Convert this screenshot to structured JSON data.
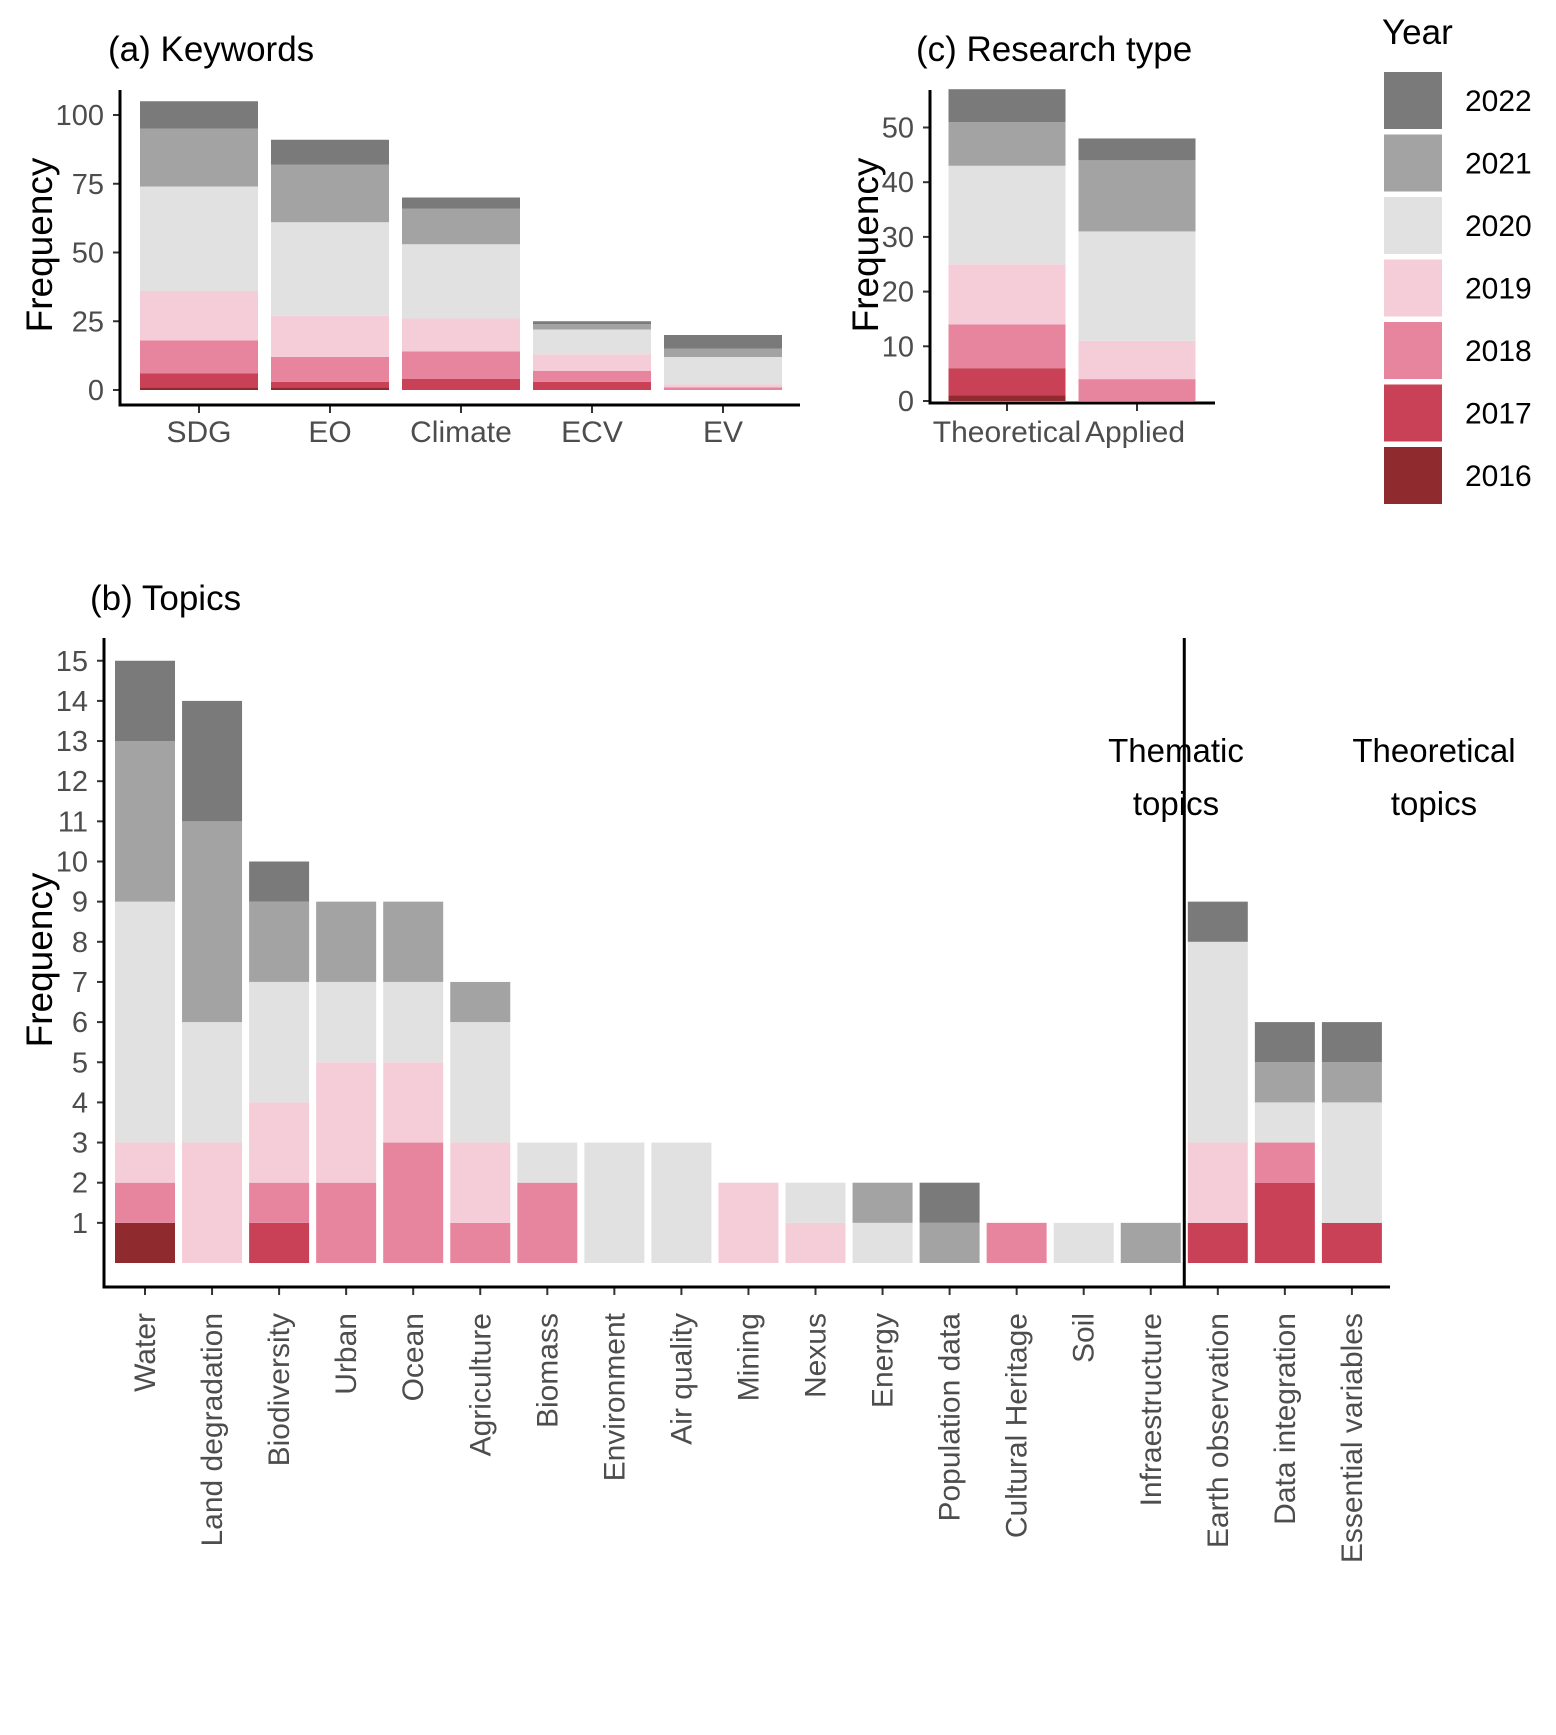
{
  "legend": {
    "title": "Year",
    "entries": [
      {
        "label": "2022",
        "color": "#7a7a7a"
      },
      {
        "label": "2021",
        "color": "#a3a3a3"
      },
      {
        "label": "2020",
        "color": "#e1e1e1"
      },
      {
        "label": "2019",
        "color": "#f5cdd9"
      },
      {
        "label": "2018",
        "color": "#e6859d"
      },
      {
        "label": "2017",
        "color": "#c94157"
      },
      {
        "label": "2016",
        "color": "#8f2a2f"
      }
    ]
  },
  "chart_data": [
    {
      "id": "keywords",
      "type": "bar",
      "stacked": true,
      "title": "(a) Keywords",
      "xlabel": "",
      "ylabel": "Frequency",
      "ylim": [
        0,
        108
      ],
      "yticks": [
        0,
        25,
        50,
        75,
        100
      ],
      "categories": [
        "SDG",
        "EO",
        "Climate",
        "ECV",
        "EV"
      ],
      "series": [
        {
          "name": "2016",
          "values": [
            1,
            1,
            0,
            0,
            0
          ]
        },
        {
          "name": "2017",
          "values": [
            5,
            2,
            4,
            3,
            0
          ]
        },
        {
          "name": "2018",
          "values": [
            12,
            9,
            10,
            4,
            1
          ]
        },
        {
          "name": "2019",
          "values": [
            18,
            15,
            12,
            6,
            1
          ]
        },
        {
          "name": "2020",
          "values": [
            38,
            34,
            27,
            9,
            10
          ]
        },
        {
          "name": "2021",
          "values": [
            21,
            21,
            13,
            2,
            3
          ]
        },
        {
          "name": "2022",
          "values": [
            10,
            9,
            4,
            1,
            5
          ]
        }
      ]
    },
    {
      "id": "research_type",
      "type": "bar",
      "stacked": true,
      "title": "(c) Research type",
      "xlabel": "",
      "ylabel": "Frequency",
      "ylim": [
        0,
        57
      ],
      "yticks": [
        0,
        10,
        20,
        30,
        40,
        50
      ],
      "categories": [
        "Theoretical",
        "Applied"
      ],
      "series": [
        {
          "name": "2016",
          "values": [
            1,
            0
          ]
        },
        {
          "name": "2017",
          "values": [
            5,
            0
          ]
        },
        {
          "name": "2018",
          "values": [
            8,
            4
          ]
        },
        {
          "name": "2019",
          "values": [
            11,
            7
          ]
        },
        {
          "name": "2020",
          "values": [
            18,
            20
          ]
        },
        {
          "name": "2021",
          "values": [
            8,
            13
          ]
        },
        {
          "name": "2022",
          "values": [
            6,
            4
          ]
        }
      ]
    },
    {
      "id": "topics",
      "type": "bar",
      "stacked": true,
      "title": "(b) Topics",
      "xlabel": "",
      "ylabel": "Frequency",
      "ylim": [
        0,
        15.5
      ],
      "yticks": [
        1,
        2,
        3,
        4,
        5,
        6,
        7,
        8,
        9,
        10,
        11,
        12,
        13,
        14,
        15
      ],
      "categories": [
        "Water",
        "Land degradation",
        "Biodiversity",
        "Urban",
        "Ocean",
        "Agriculture",
        "Biomass",
        "Environment",
        "Air quality",
        "Mining",
        "Nexus",
        "Energy",
        "Population data",
        "Cultural Heritage",
        "Soil",
        "Infraestructure",
        "Earth observation",
        "Data integration",
        "Essential variables"
      ],
      "separator_after_index": 15,
      "group_labels": [
        {
          "line1": "Thematic",
          "line2": "topics"
        },
        {
          "line1": "Theoretical",
          "line2": "topics"
        }
      ],
      "series": [
        {
          "name": "2016",
          "values": [
            1,
            0,
            0,
            0,
            0,
            0,
            0,
            0,
            0,
            0,
            0,
            0,
            0,
            0,
            0,
            0,
            0,
            0,
            0
          ]
        },
        {
          "name": "2017",
          "values": [
            0,
            0,
            1,
            0,
            0,
            0,
            0,
            0,
            0,
            0,
            0,
            0,
            0,
            0,
            0,
            0,
            1,
            2,
            1
          ]
        },
        {
          "name": "2018",
          "values": [
            1,
            0,
            1,
            2,
            3,
            1,
            2,
            0,
            0,
            0,
            0,
            0,
            0,
            1,
            0,
            0,
            0,
            1,
            0
          ]
        },
        {
          "name": "2019",
          "values": [
            1,
            3,
            2,
            3,
            2,
            2,
            0,
            0,
            0,
            2,
            1,
            0,
            0,
            0,
            0,
            0,
            2,
            0,
            0
          ]
        },
        {
          "name": "2020",
          "values": [
            6,
            3,
            3,
            2,
            2,
            3,
            1,
            3,
            3,
            0,
            1,
            1,
            0,
            0,
            1,
            0,
            5,
            1,
            3
          ]
        },
        {
          "name": "2021",
          "values": [
            4,
            5,
            2,
            2,
            2,
            1,
            0,
            0,
            0,
            0,
            0,
            1,
            1,
            0,
            0,
            1,
            0,
            1,
            1
          ]
        },
        {
          "name": "2022",
          "values": [
            2,
            3,
            1,
            0,
            0,
            0,
            0,
            0,
            0,
            0,
            0,
            0,
            1,
            0,
            0,
            0,
            1,
            1,
            1
          ]
        }
      ]
    }
  ]
}
